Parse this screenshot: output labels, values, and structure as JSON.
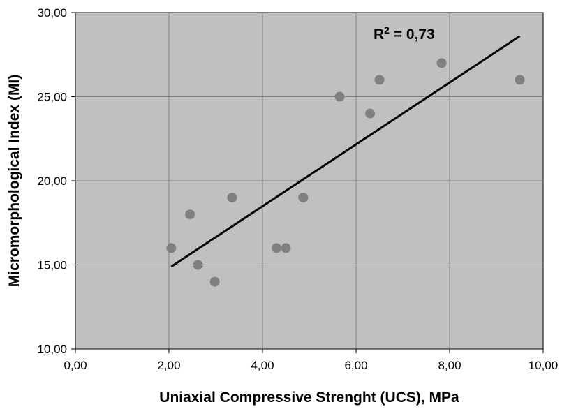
{
  "chart_data": {
    "type": "scatter",
    "title": "",
    "xlabel": "Uniaxial Compressive Strenght (UCS), MPa",
    "ylabel": "Micromorphological Index (MI)",
    "xlim": [
      0,
      10
    ],
    "ylim": [
      10,
      30
    ],
    "x_ticks": [
      "0,00",
      "2,00",
      "4,00",
      "6,00",
      "8,00",
      "10,00"
    ],
    "y_ticks": [
      "10,00",
      "15,00",
      "20,00",
      "25,00",
      "30,00"
    ],
    "grid": true,
    "legend": "none",
    "colors": {
      "plot_background": "#c0c0c0",
      "points": "#808080",
      "trendline": "#000000",
      "grid": "#808080"
    },
    "points": [
      {
        "x": 2.05,
        "y": 16
      },
      {
        "x": 2.45,
        "y": 18
      },
      {
        "x": 2.62,
        "y": 15
      },
      {
        "x": 2.98,
        "y": 14
      },
      {
        "x": 3.35,
        "y": 19
      },
      {
        "x": 4.3,
        "y": 16
      },
      {
        "x": 4.5,
        "y": 16
      },
      {
        "x": 4.87,
        "y": 19
      },
      {
        "x": 5.65,
        "y": 25
      },
      {
        "x": 6.3,
        "y": 24
      },
      {
        "x": 6.5,
        "y": 26
      },
      {
        "x": 7.83,
        "y": 27
      },
      {
        "x": 9.5,
        "y": 26
      }
    ],
    "trendline": {
      "x": [
        2.05,
        9.5
      ],
      "y": [
        14.9,
        28.6
      ]
    },
    "annotation": {
      "r_label": "R",
      "r_superscript": "2",
      "r_value": " = 0,73"
    }
  }
}
